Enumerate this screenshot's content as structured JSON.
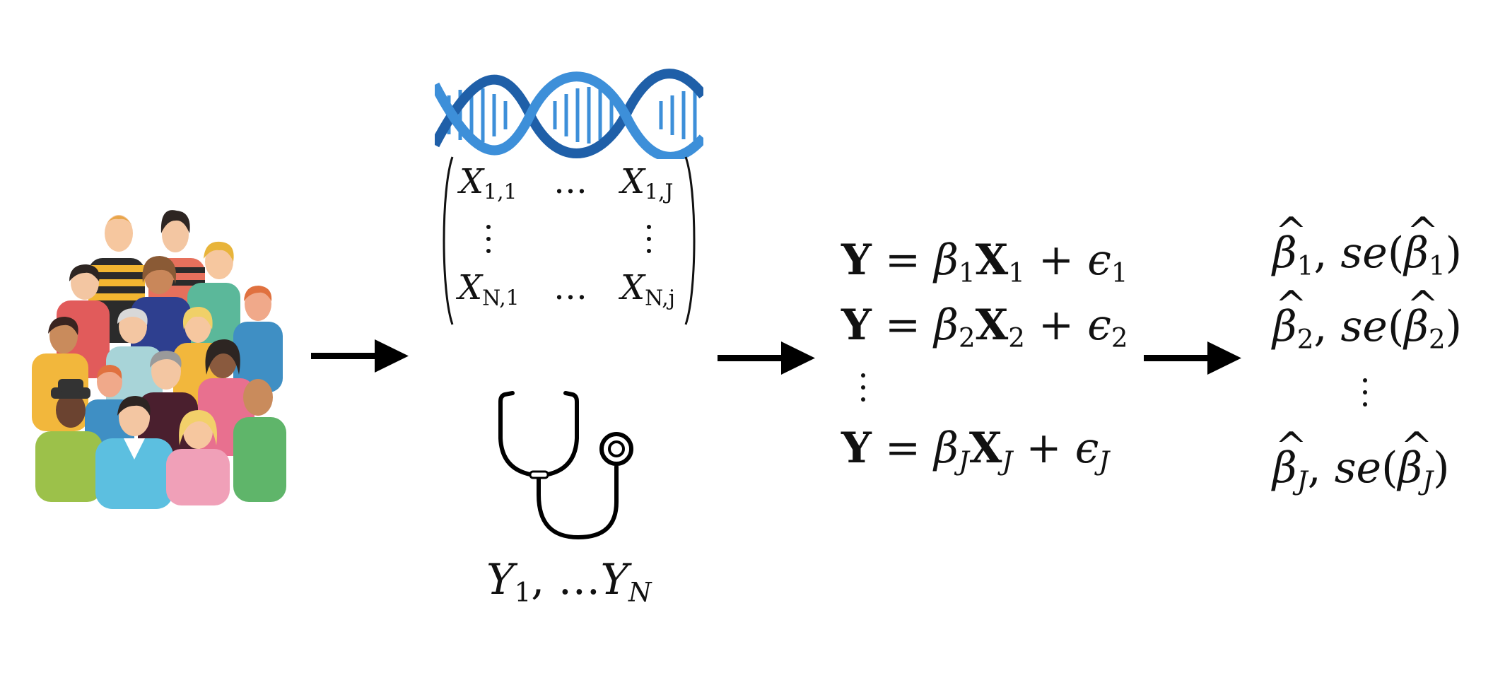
{
  "matrix": {
    "x11": "X",
    "x11_sub": "1,1",
    "x1j": "X",
    "x1j_sub": "1,J",
    "xn1": "X",
    "xn1_sub": "N,1",
    "xnj": "X",
    "xnj_sub": "N,j",
    "ellipsis": "…"
  },
  "phenotype": {
    "y1": "Y",
    "y1_sub": "1",
    "sep": ", …",
    "yn": "Y",
    "yn_sub": "N"
  },
  "equations": [
    {
      "lhs": "Y",
      "eq": " = ",
      "beta": "β",
      "beta_sub": "1",
      "x": "X",
      "x_sub": "1",
      "plus": " + ",
      "eps": "ϵ",
      "eps_sub": "1"
    },
    {
      "lhs": "Y",
      "eq": " = ",
      "beta": "β",
      "beta_sub": "2",
      "x": "X",
      "x_sub": "2",
      "plus": " + ",
      "eps": "ϵ",
      "eps_sub": "2"
    },
    {
      "lhs": "Y",
      "eq": " = ",
      "beta": "β",
      "beta_sub": "J",
      "x": "X",
      "x_sub": "J",
      "plus": " + ",
      "eps": "ϵ",
      "eps_sub": "J"
    }
  ],
  "results": [
    {
      "beta": "β",
      "sub": "1",
      "mid": ", ",
      "se": "se",
      "open": "(",
      "close": ")"
    },
    {
      "beta": "β",
      "sub": "2",
      "mid": ", ",
      "se": "se",
      "open": "(",
      "close": ")"
    },
    {
      "beta": "β",
      "sub": "J",
      "mid": ", ",
      "se": "se",
      "open": "(",
      "close": ")"
    }
  ],
  "colors": {
    "dna": "#3d8fd9",
    "dna_dark": "#1f5fa8",
    "ink": "#000000"
  }
}
